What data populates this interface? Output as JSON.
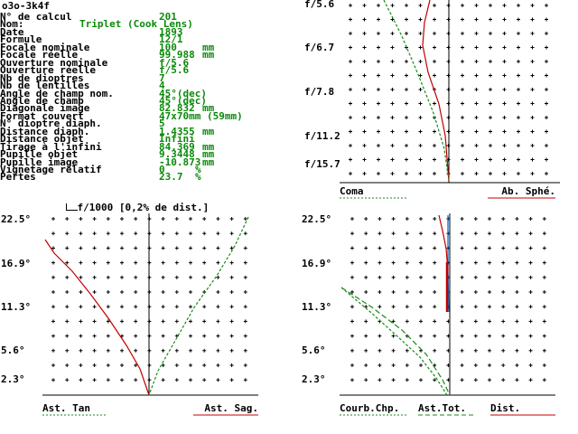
{
  "header": {
    "code": "o3o-3k4f"
  },
  "params": [
    {
      "label": "N° de calcul",
      "value": "201",
      "unit": ""
    },
    {
      "label": "Nom:",
      "value": "Triplet (Cook Lens)",
      "unit": ""
    },
    {
      "label": "Date",
      "value": "1893",
      "unit": ""
    },
    {
      "label": "Formule",
      "value": "12/1",
      "unit": ""
    },
    {
      "label": "Focale nominale",
      "value": "100",
      "unit": "mm"
    },
    {
      "label": "Focale réelle",
      "value": "99.988",
      "unit": "mm"
    },
    {
      "label": "Ouverture nominale",
      "value": "f/5.6",
      "unit": ""
    },
    {
      "label": "Ouverture réelle",
      "value": "f/5.6",
      "unit": ""
    },
    {
      "label": "Nb de dioptres",
      "value": "7",
      "unit": ""
    },
    {
      "label": "Nb de lentilles",
      "value": "4",
      "unit": ""
    },
    {
      "label": "Angle de champ nom.",
      "value": "45°(dec)",
      "unit": ""
    },
    {
      "label": "Angle de champ",
      "value": "45°(dec)",
      "unit": ""
    },
    {
      "label": "Diagonale image",
      "value": "82.832",
      "unit": "mm"
    },
    {
      "label": "Format couvert",
      "value": "47x70mm (59mm)",
      "unit": ""
    },
    {
      "label": "N° dioptre diaph.",
      "value": "5",
      "unit": ""
    },
    {
      "label": "Distance diaph.",
      "value": "1.4355",
      "unit": "mm"
    },
    {
      "label": "Distance objet",
      "value": "Infini",
      "unit": ""
    },
    {
      "label": "Tirage à l'infini",
      "value": "84.369",
      "unit": "mm"
    },
    {
      "label": "Pupille objet",
      "value": "9.3448",
      "unit": "mm"
    },
    {
      "label": "Pupille image",
      "value": "-10.873",
      "unit": "mm"
    },
    {
      "label": "Vignetage relatif",
      "value": "0",
      "unit": "%"
    },
    {
      "label": "Pertes",
      "value": "23.7",
      "unit": "%"
    }
  ],
  "scale_note": "f/1000 [0,2% de dist.]",
  "panels": {
    "aperture": {
      "ticks": [
        "f/5.6",
        "f/6.7",
        "f/7.8",
        "f/11.2",
        "f/15.7"
      ],
      "legend_left": "Coma",
      "legend_right": "Ab. Sphé."
    },
    "astig": {
      "ticks": [
        "22.5°",
        "16.9°",
        "11.3°",
        "5.6°",
        "2.3°"
      ],
      "legend_left": "Ast. Tan",
      "legend_right": "Ast. Sag."
    },
    "field": {
      "ticks": [
        "22.5°",
        "16.9°",
        "11.3°",
        "5.6°",
        "2.3°"
      ],
      "legend_left": "Courb.Chp.",
      "legend_mid": "Ast.Tot.",
      "legend_right": "Dist."
    }
  },
  "colors": {
    "value": "#0a8a0a",
    "red": "#c00000",
    "green": "#1a8a1a",
    "blue": "#0060c0",
    "axis": "#000000"
  }
}
